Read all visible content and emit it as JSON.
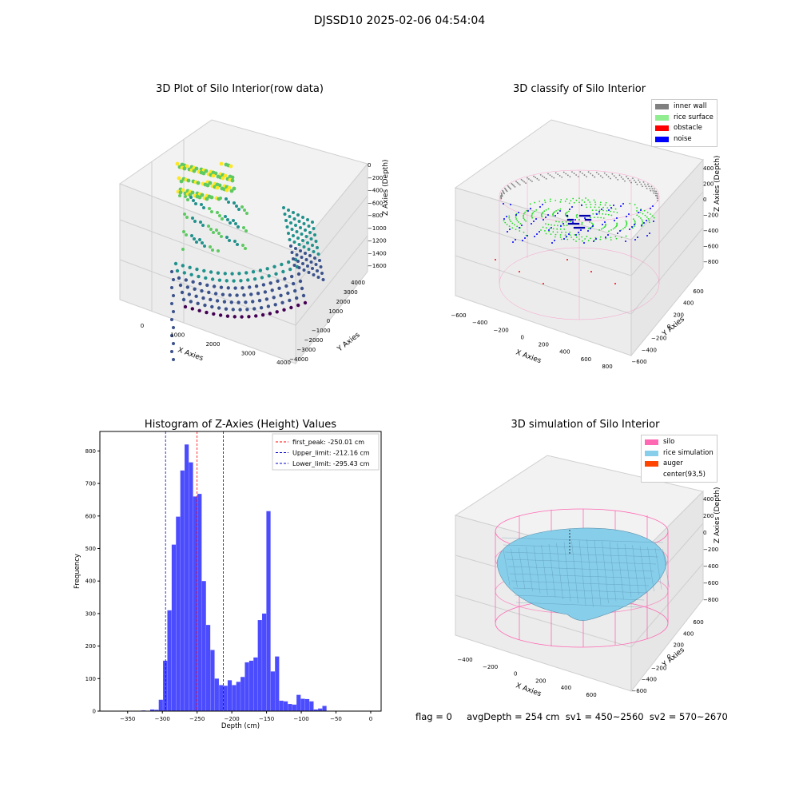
{
  "suptitle": "DJSSD10 2025-02-06 04:54:04",
  "panels": {
    "raw": {
      "title": "3D Plot of Silo Interior(row data)",
      "xlabel": "X Axies",
      "ylabel": "Y Axies",
      "zlabel": "Z Axies (Depth)",
      "xticks": [
        "0",
        "1000",
        "2000",
        "3000",
        "4000"
      ],
      "yticks": [
        "4000",
        "3000",
        "2000",
        "1000",
        "0",
        "−1000",
        "−2000",
        "−3000",
        "−4000"
      ],
      "zticks": [
        "0",
        "−200",
        "−400",
        "−600",
        "−800",
        "−1000",
        "−1200",
        "−1400",
        "−1600"
      ],
      "colormap": [
        "#440154",
        "#3b528b",
        "#21918c",
        "#5ec962",
        "#fde725"
      ]
    },
    "classify": {
      "title": "3D classify of Silo Interior",
      "xlabel": "X Axies",
      "ylabel": "Y Axies",
      "zlabel": "Z Axies (Depth)",
      "xticks": [
        "−600",
        "−400",
        "−200",
        "0",
        "200",
        "400",
        "600",
        "800"
      ],
      "yticks": [
        "600",
        "400",
        "200",
        "0",
        "−200",
        "−400",
        "−600"
      ],
      "zticks": [
        "400",
        "200",
        "0",
        "−200",
        "−400",
        "−600",
        "−800"
      ],
      "legend": [
        {
          "label": "inner wall",
          "color": "#808080"
        },
        {
          "label": "rice surface",
          "color": "#90ee90"
        },
        {
          "label": "obstacle",
          "color": "#ff0000"
        },
        {
          "label": "noise",
          "color": "#0000ff"
        }
      ]
    },
    "simulation": {
      "title": "3D simulation of Silo Interior",
      "xlabel": "X Axies",
      "ylabel": "Y Axies",
      "zlabel": "Z Axies (Depth)",
      "xticks": [
        "−400",
        "−200",
        "0",
        "200",
        "400",
        "600"
      ],
      "yticks": [
        "600",
        "400",
        "200",
        "0",
        "−200",
        "−400",
        "−600"
      ],
      "zticks": [
        "400",
        "200",
        "0",
        "−200",
        "−400",
        "−600",
        "−800"
      ],
      "legend": [
        {
          "label": "silo",
          "color": "#ff69b4"
        },
        {
          "label": "rice simulation",
          "color": "#87ceeb"
        },
        {
          "label": "auger",
          "color": "#ff4500"
        },
        {
          "label": "center(93,5)",
          "color": ""
        }
      ]
    }
  },
  "footer": "flag = 0     avgDepth = 254 cm  sv1 = 450~2560  sv2 = 570~2670",
  "chart_data": {
    "type": "bar",
    "title": "Histogram of Z-Axies (Height) Values",
    "xlabel": "Depth (cm)",
    "ylabel": "Frequency",
    "xlim": [
      -390,
      15
    ],
    "ylim": [
      0,
      860
    ],
    "xticks": [
      -350,
      -300,
      -250,
      -200,
      -150,
      -100,
      -50,
      0
    ],
    "yticks": [
      0,
      100,
      200,
      300,
      400,
      500,
      600,
      700,
      800
    ],
    "bin_width": 6.2,
    "bin_start": -330,
    "values": [
      2,
      0,
      5,
      4,
      35,
      155,
      310,
      512,
      598,
      740,
      820,
      765,
      660,
      668,
      400,
      265,
      188,
      100,
      80,
      78,
      95,
      80,
      90,
      105,
      150,
      155,
      165,
      280,
      300,
      615,
      122,
      168,
      32,
      30,
      22,
      20,
      50,
      38,
      37,
      30,
      5,
      8,
      16
    ],
    "color": "#0000ff",
    "vlines": [
      {
        "label": "first_peak: -250.01 cm",
        "x": -250.01,
        "color": "#ff0000"
      },
      {
        "label": "Upper_limit: -212.16 cm",
        "x": -212.16,
        "color": "#0000cc"
      },
      {
        "label": "Lower_limit: -295.43 cm",
        "x": -295.43,
        "color": "#0000cc"
      }
    ]
  }
}
